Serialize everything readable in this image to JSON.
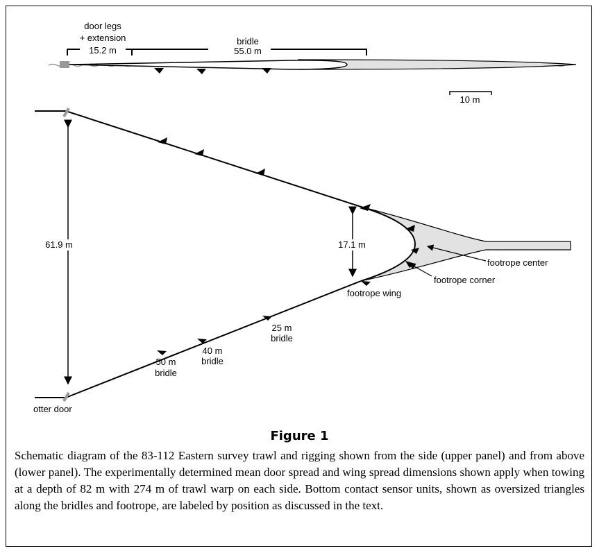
{
  "upper_panel": {
    "door_legs_label": [
      "door legs",
      "+ extension"
    ],
    "door_legs_length": "15.2 m",
    "bridle_label": "bridle",
    "bridle_length": "55.0 m",
    "scale_bar": "10 m"
  },
  "lower_panel": {
    "door_spread": "61.9 m",
    "wing_spread": "17.1 m",
    "labels": {
      "footrope_center": "footrope center",
      "footrope_corner": "footrope corner",
      "footrope_wing": "footrope wing",
      "bridle_25": [
        "25 m",
        "bridle"
      ],
      "bridle_40": [
        "40 m",
        "bridle"
      ],
      "bridle_50": [
        "50 m",
        "bridle"
      ],
      "otter_door": "otter door"
    }
  },
  "figure": {
    "title": "Figure 1",
    "caption": "Schematic diagram of the 83-112 Eastern survey trawl and rigging shown from the side (upper panel) and from above (lower panel). The experimentally determined mean door spread and wing spread dimensions shown apply when towing at a depth of 82 m with 274 m of trawl warp on each side. Bottom contact sensor units, shown as oversized triangles along the bridles and footrope, are labeled by position as discussed in the text."
  }
}
